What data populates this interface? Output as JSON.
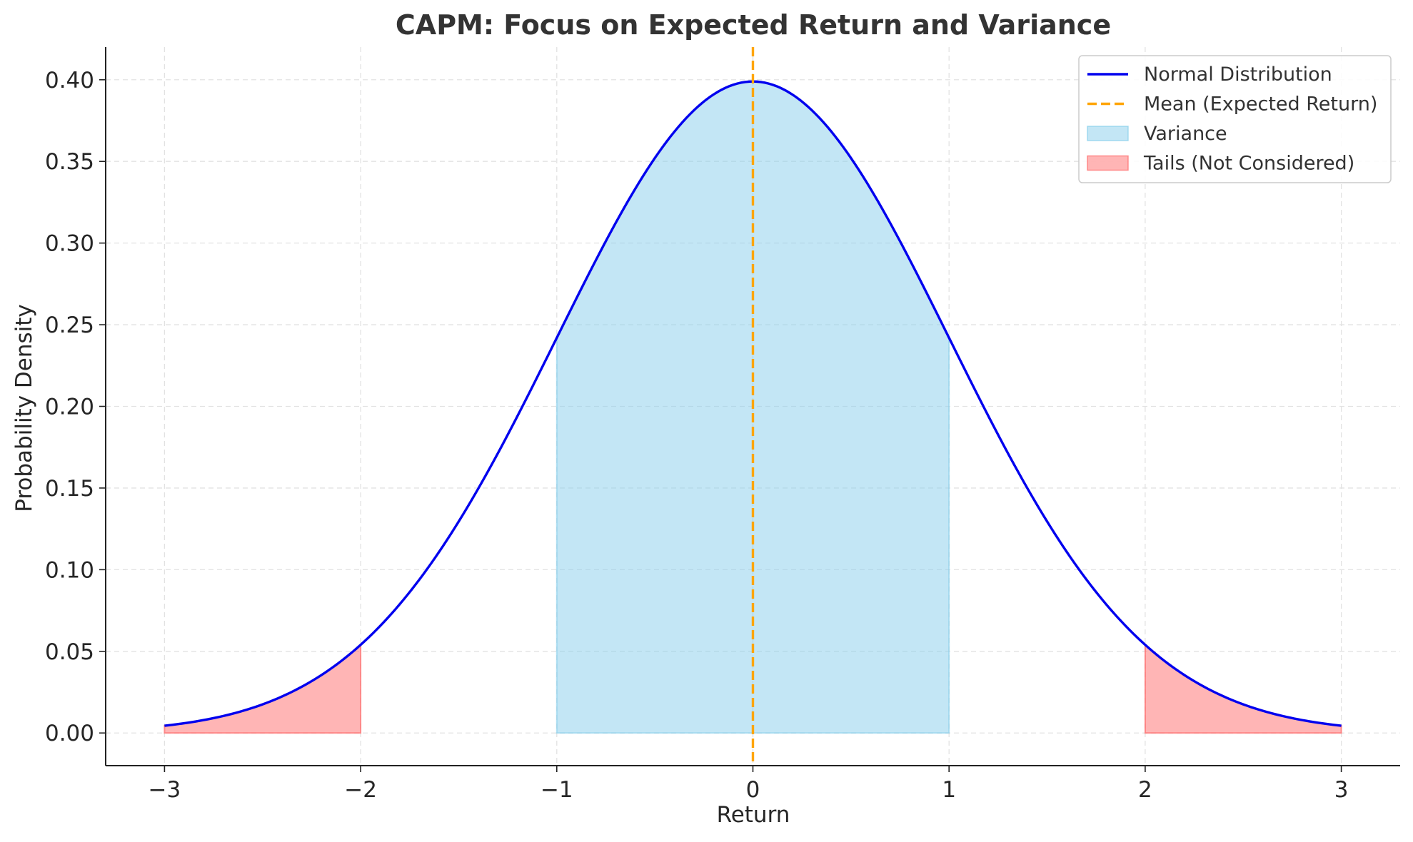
{
  "chart_data": {
    "type": "area",
    "title": "CAPM: Focus on Expected Return and Variance",
    "xlabel": "Return",
    "ylabel": "Probability Density",
    "xlim": [
      -3.3,
      3.3
    ],
    "ylim": [
      -0.02,
      0.42
    ],
    "x_ticks": [
      -3,
      -2,
      -1,
      0,
      1,
      2,
      3
    ],
    "x_tick_labels": [
      "−3",
      "−2",
      "−1",
      "0",
      "1",
      "2",
      "3"
    ],
    "y_ticks": [
      0.0,
      0.05,
      0.1,
      0.15,
      0.2,
      0.25,
      0.3,
      0.35,
      0.4
    ],
    "y_tick_labels": [
      "0.00",
      "0.05",
      "0.10",
      "0.15",
      "0.20",
      "0.25",
      "0.30",
      "0.35",
      "0.40"
    ],
    "grid": true,
    "legend_position": "top-right",
    "series": [
      {
        "name": "Normal Distribution",
        "kind": "line",
        "color": "#0000ee",
        "x": [
          -3.0,
          -2.75,
          -2.5,
          -2.25,
          -2.0,
          -1.75,
          -1.5,
          -1.25,
          -1.0,
          -0.75,
          -0.5,
          -0.25,
          0.0,
          0.25,
          0.5,
          0.75,
          1.0,
          1.25,
          1.5,
          1.75,
          2.0,
          2.25,
          2.5,
          2.75,
          3.0
        ],
        "y": [
          0.0044,
          0.0091,
          0.0175,
          0.0317,
          0.054,
          0.0863,
          0.1295,
          0.1826,
          0.242,
          0.3011,
          0.3521,
          0.3867,
          0.3989,
          0.3867,
          0.3521,
          0.3011,
          0.242,
          0.1826,
          0.1295,
          0.0863,
          0.054,
          0.0317,
          0.0175,
          0.0091,
          0.0044
        ]
      },
      {
        "name": "Mean (Expected Return)",
        "kind": "vline",
        "color": "#ffa500",
        "x_value": 0
      },
      {
        "name": "Variance",
        "kind": "fill",
        "color": "#87ceeb",
        "x_range": [
          -1,
          1
        ]
      },
      {
        "name": "Tails (Not Considered)",
        "kind": "fill",
        "color": "#ff6b6b",
        "x_ranges": [
          [
            -3,
            -2
          ],
          [
            2,
            3
          ]
        ]
      }
    ]
  }
}
